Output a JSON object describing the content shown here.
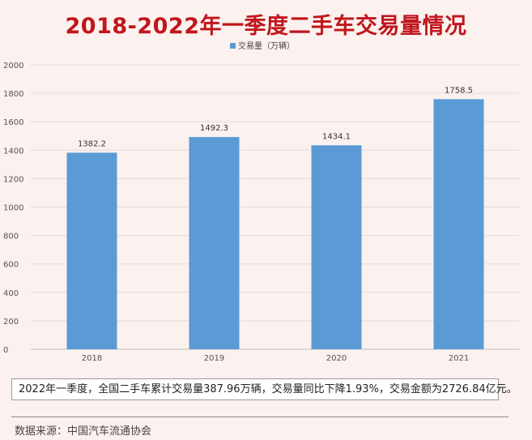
{
  "title": "2018-2022年一季度二手车交易量情况",
  "chart_data": {
    "type": "bar",
    "categories": [
      "2018",
      "2019",
      "2020",
      "2021"
    ],
    "series": [
      {
        "name": "交易量（万辆）",
        "values": [
          1382.2,
          1492.3,
          1434.1,
          1758.5
        ]
      }
    ],
    "data_labels": [
      "1382.2",
      "1492.3",
      "1434.1",
      "1758.5"
    ],
    "y_ticks": [
      "0",
      "200",
      "400",
      "600",
      "800",
      "1000",
      "1200",
      "1400",
      "1600",
      "1800",
      "2000"
    ],
    "ylim": [
      0,
      2000
    ],
    "legend_position": "top",
    "grid": true,
    "bar_color": "#5b9bd5"
  },
  "note": "2022年一季度，全国二手车累计交易量387.96万辆，交易量同比下降1.93%，交易金额为2726.84亿元。",
  "source": "数据来源：中国汽车流通协会"
}
